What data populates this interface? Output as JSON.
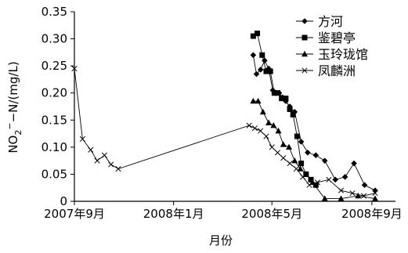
{
  "chart_data": {
    "type": "line",
    "title": "",
    "xlabel": "月份",
    "ylabel": "NO₂⁻-N/(mg/L)",
    "ylabel_parts": {
      "pre": "NO",
      "sub": "2",
      "sup": "−",
      "post": "−N/(mg/L)"
    },
    "x_ticks": [
      "2007-09-01",
      "2008-01-01",
      "2008-05-01",
      "2008-09-01"
    ],
    "x_tick_labels": [
      "2007年9月",
      "2008年1月",
      "2008年5月",
      "2008年9月"
    ],
    "xlim": [
      "2007-09-01",
      "2008-09-30"
    ],
    "ylim": [
      0,
      0.35
    ],
    "y_ticks": [
      0,
      0.05,
      0.1,
      0.15,
      0.2,
      0.25,
      0.3,
      0.35
    ],
    "y_tick_labels": [
      "0",
      "0.05",
      "0.10",
      "0.15",
      "0.20",
      "0.25",
      "0.30",
      "0.35"
    ],
    "legend_position": "top-right",
    "series": [
      {
        "name": "方河",
        "marker": "diamond",
        "points": [
          [
            "2008-04-08",
            0.27
          ],
          [
            "2008-04-12",
            0.235
          ],
          [
            "2008-04-17",
            0.243
          ],
          [
            "2008-04-22",
            0.26
          ],
          [
            "2008-04-27",
            0.245
          ],
          [
            "2008-05-02",
            0.205
          ],
          [
            "2008-05-06",
            0.2
          ],
          [
            "2008-05-10",
            0.2
          ],
          [
            "2008-05-14",
            0.192
          ],
          [
            "2008-05-18",
            0.185
          ],
          [
            "2008-05-23",
            0.175
          ],
          [
            "2008-05-29",
            0.165
          ],
          [
            "2008-06-06",
            0.11
          ],
          [
            "2008-06-14",
            0.09
          ],
          [
            "2008-06-24",
            0.085
          ],
          [
            "2008-07-05",
            0.075
          ],
          [
            "2008-07-18",
            0.04
          ],
          [
            "2008-07-30",
            0.045
          ],
          [
            "2008-08-10",
            0.07
          ],
          [
            "2008-08-23",
            0.03
          ],
          [
            "2008-09-05",
            0.02
          ]
        ]
      },
      {
        "name": "鉴碧亭",
        "marker": "square",
        "points": [
          [
            "2008-04-08",
            0.305
          ],
          [
            "2008-04-13",
            0.31
          ],
          [
            "2008-04-19",
            0.27
          ],
          [
            "2008-04-24",
            0.24
          ],
          [
            "2008-04-29",
            0.24
          ],
          [
            "2008-05-04",
            0.2
          ],
          [
            "2008-05-08",
            0.2
          ],
          [
            "2008-05-13",
            0.19
          ],
          [
            "2008-05-18",
            0.19
          ],
          [
            "2008-05-23",
            0.17
          ],
          [
            "2008-05-27",
            0.16
          ],
          [
            "2008-06-01",
            0.12
          ],
          [
            "2008-06-06",
            0.07
          ],
          [
            "2008-06-12",
            0.05
          ],
          [
            "2008-06-18",
            0.04
          ],
          [
            "2008-06-24",
            0.03
          ]
        ]
      },
      {
        "name": "玉玲珑馆",
        "marker": "triangle",
        "points": [
          [
            "2008-04-08",
            0.185
          ],
          [
            "2008-04-14",
            0.185
          ],
          [
            "2008-04-20",
            0.165
          ],
          [
            "2008-04-27",
            0.145
          ],
          [
            "2008-05-03",
            0.14
          ],
          [
            "2008-05-09",
            0.13
          ],
          [
            "2008-05-15",
            0.105
          ],
          [
            "2008-05-22",
            0.1
          ],
          [
            "2008-05-29",
            0.075
          ],
          [
            "2008-06-05",
            0.06
          ],
          [
            "2008-06-12",
            0.05
          ],
          [
            "2008-06-20",
            0.035
          ],
          [
            "2008-07-05",
            0.005
          ],
          [
            "2008-07-25",
            0.005
          ],
          [
            "2008-08-15",
            0.01
          ],
          [
            "2008-09-05",
            0.005
          ]
        ]
      },
      {
        "name": "凤麟洲",
        "marker": "x",
        "points": [
          [
            "2007-09-01",
            0.245
          ],
          [
            "2007-09-11",
            0.115
          ],
          [
            "2007-09-21",
            0.095
          ],
          [
            "2007-09-29",
            0.075
          ],
          [
            "2007-10-08",
            0.085
          ],
          [
            "2007-10-16",
            0.068
          ],
          [
            "2007-10-25",
            0.06
          ],
          [
            "2008-04-03",
            0.14
          ],
          [
            "2008-04-10",
            0.135
          ],
          [
            "2008-04-17",
            0.13
          ],
          [
            "2008-04-24",
            0.12
          ],
          [
            "2008-05-01",
            0.1
          ],
          [
            "2008-05-08",
            0.09
          ],
          [
            "2008-05-15",
            0.08
          ],
          [
            "2008-05-23",
            0.07
          ],
          [
            "2008-05-31",
            0.06
          ],
          [
            "2008-06-08",
            0.045
          ],
          [
            "2008-06-16",
            0.03
          ],
          [
            "2008-06-26",
            0.035
          ],
          [
            "2008-07-10",
            0.04
          ],
          [
            "2008-07-25",
            0.02
          ],
          [
            "2008-08-08",
            0.015
          ],
          [
            "2008-08-22",
            0.01
          ],
          [
            "2008-09-05",
            0.015
          ]
        ]
      }
    ]
  }
}
